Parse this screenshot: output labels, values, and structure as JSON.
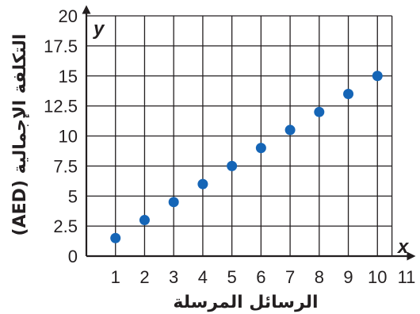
{
  "chart_data": {
    "type": "scatter",
    "xlabel": "الرسائل المرسلة",
    "ylabel": "التكلفة الإجمالية (AED)",
    "x_var": "x",
    "y_var": "y",
    "xlim": [
      0,
      11
    ],
    "ylim": [
      0,
      20
    ],
    "x_ticks": [
      "1",
      "2",
      "3",
      "4",
      "5",
      "6",
      "7",
      "8",
      "9",
      "10",
      "11"
    ],
    "y_ticks": [
      "0",
      "2.5",
      "5",
      "7.5",
      "10",
      "12.5",
      "15",
      "17.5",
      "20"
    ],
    "grid": true,
    "point_color": "#1565b6",
    "series": [
      {
        "x": [
          1,
          2,
          3,
          4,
          5,
          6,
          7,
          8,
          9,
          10
        ],
        "y": [
          1.5,
          3,
          4.5,
          6,
          7.5,
          9,
          10.5,
          12,
          13.5,
          15
        ]
      }
    ]
  }
}
